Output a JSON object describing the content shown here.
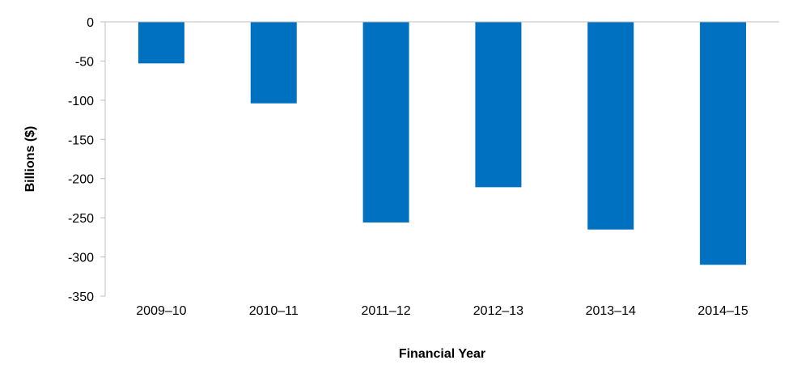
{
  "chart_data": {
    "type": "bar",
    "categories": [
      "2009–10",
      "2010–11",
      "2011–12",
      "2012–13",
      "2013–14",
      "2014–15"
    ],
    "series": [
      {
        "values": [
          -53,
          -104,
          -256,
          -211,
          -265,
          -310
        ]
      }
    ],
    "title": "",
    "xlabel": "Financial Year",
    "ylabel": "Billions ($)",
    "ylim": [
      -350,
      0
    ],
    "yticks": [
      "0",
      "-50",
      "-100",
      "-150",
      "-200",
      "-250",
      "-300",
      "-350"
    ],
    "grid": false,
    "legend": "none",
    "bar_color": "#0070C0",
    "axis_color": "#BFBFBF"
  }
}
